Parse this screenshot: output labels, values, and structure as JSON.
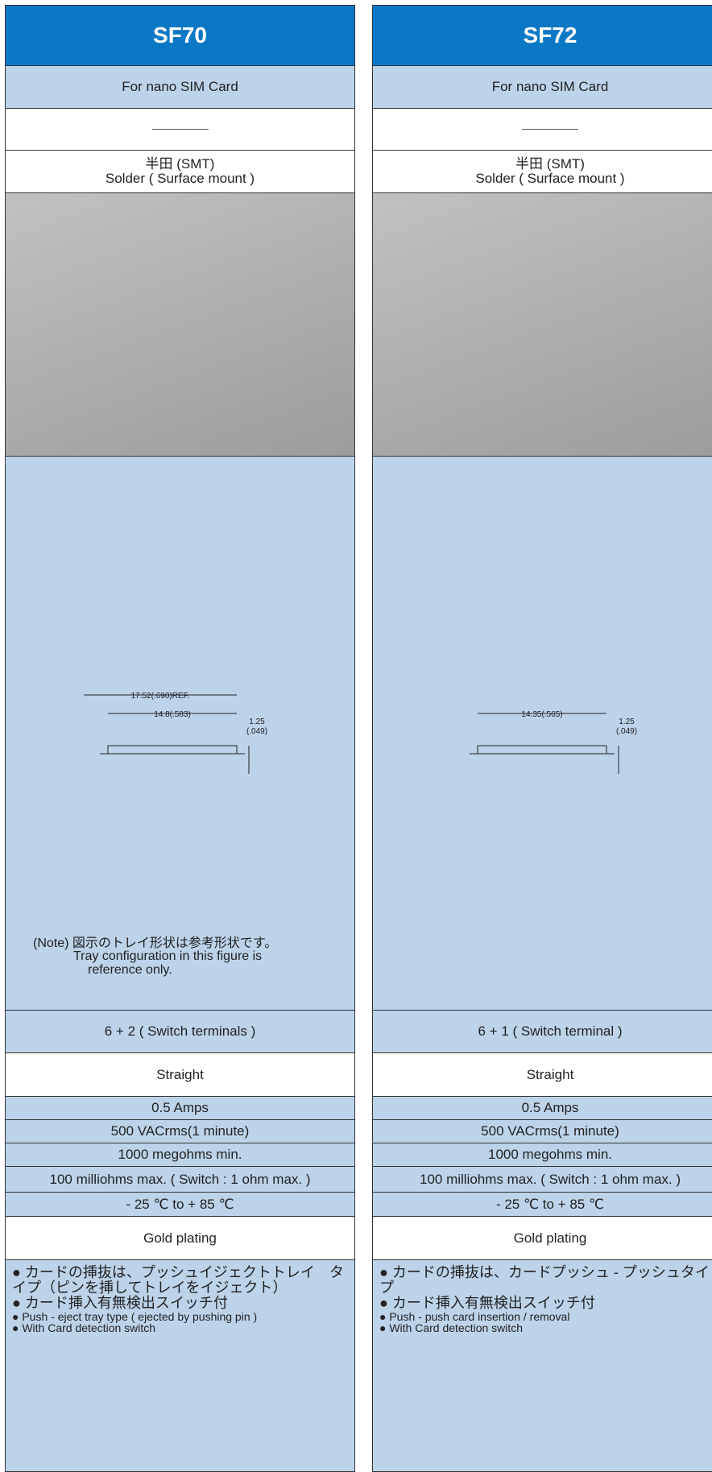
{
  "columns": [
    {
      "name": "SF70",
      "card": "For nano SIM Card",
      "mount_ja": "半田 (SMT)",
      "mount_en": "Solder ( Surface mount )",
      "dims": [
        "17.52(.690)REF.",
        "14.8(.583)",
        "1.25",
        "(.049)"
      ],
      "note": [
        "(Note) 図示のトレイ形状は参考形状です。",
        "Tray configuration in this figure is",
        "reference only."
      ],
      "terminals": "6 + 2 ( Switch terminals )",
      "type": "Straight",
      "current": "0.5 Amps",
      "voltage": "500 VACrms(1 minute)",
      "insulation": "1000 megohms min.",
      "contact": "100 milliohms max. ( Switch : 1 ohm max. )",
      "temperature": "- 25 ℃  to  + 85 ℃",
      "plating": "Gold plating",
      "features": [
        "● カードの挿抜は、プッシュイジェクトトレイ　タイプ（ピンを挿してトレイをイジェクト）",
        "● カード挿入有無検出スイッチ付",
        "● Push - eject tray type ( ejected by pushing pin )",
        "● With Card detection switch"
      ]
    },
    {
      "name": "SF72",
      "card": "For nano SIM Card",
      "mount_ja": "半田 (SMT)",
      "mount_en": "Solder ( Surface mount )",
      "dims": [
        "14.35(.565)",
        "1.25",
        "(.049)"
      ],
      "terminals": "6 + 1 ( Switch terminal )",
      "type": "Straight",
      "current": "0.5 Amps",
      "voltage": "500 VACrms(1 minute)",
      "insulation": "1000 megohms min.",
      "contact": "100 milliohms max. ( Switch : 1 ohm max. )",
      "temperature": "- 25 ℃  to  + 85 ℃",
      "plating": "Gold plating",
      "features": [
        "● カードの挿抜は、カードプッシュ - プッシュタイプ",
        "● カード挿入有無検出スイッチ付",
        "● Push - push card insertion / removal",
        "● With Card detection switch"
      ]
    }
  ]
}
